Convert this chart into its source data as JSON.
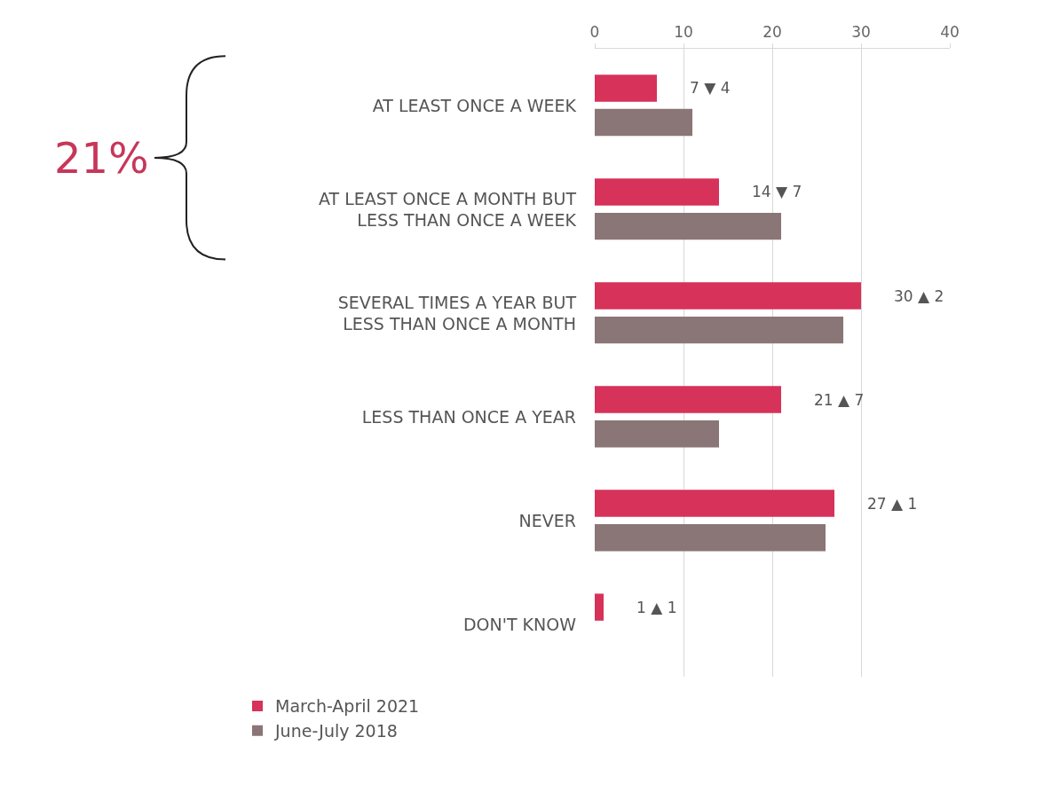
{
  "chart_data": {
    "type": "bar",
    "orientation": "horizontal",
    "categories": [
      "AT LEAST ONCE A WEEK",
      "AT LEAST ONCE A MONTH BUT\nLESS THAN ONCE A WEEK",
      "SEVERAL TIMES A YEAR BUT\nLESS THAN ONCE A MONTH",
      "LESS THAN ONCE A YEAR",
      "NEVER",
      "DON'T KNOW"
    ],
    "series": [
      {
        "name": "March-April 2021",
        "color": "#d6325a",
        "values": [
          7,
          14,
          30,
          21,
          27,
          1
        ],
        "value_labels": [
          "7 ▼ 4",
          "14 ▼ 7",
          "30 ▲ 2",
          "21 ▲ 7",
          "27 ▲ 1",
          "1 ▲ 1"
        ]
      },
      {
        "name": "June-July 2018",
        "color": "#8a7577",
        "values": [
          11,
          21,
          28,
          14,
          26,
          0
        ]
      }
    ],
    "xlim": [
      0,
      40
    ],
    "xticks": [
      0,
      10,
      20,
      30,
      40
    ],
    "grid": "x",
    "legend": "bottom left",
    "annotations": [
      "21%"
    ]
  }
}
